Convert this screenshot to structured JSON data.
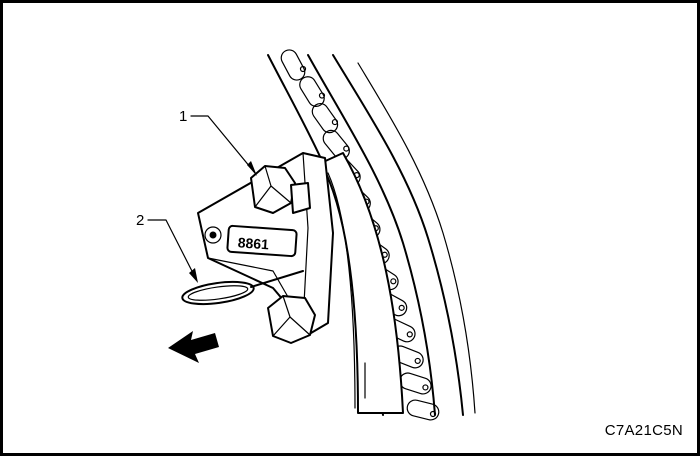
{
  "figure": {
    "code": "C7A21C5N",
    "callouts": [
      "1",
      "2"
    ],
    "tensioner_stamp": "8861"
  },
  "colors": {
    "ink": "#000000",
    "paper": "#ffffff"
  }
}
